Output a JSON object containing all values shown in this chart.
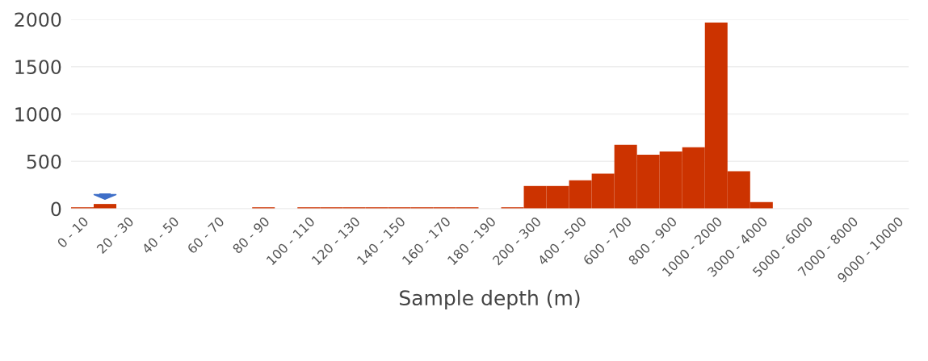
{
  "chart_data": {
    "type": "bar",
    "xlabel": "Sample depth (m)",
    "categories": [
      "0 - 10",
      null,
      "20 - 30",
      null,
      "40 - 50",
      null,
      "60 - 70",
      null,
      "80 - 90",
      null,
      "100 - 110",
      null,
      "120 - 130",
      null,
      "140 - 150",
      null,
      "160 - 170",
      null,
      "180 - 190",
      null,
      "200 - 300",
      null,
      "400 - 500",
      null,
      "600 - 700",
      null,
      "800 - 900",
      null,
      "1000 - 2000",
      null,
      "3000 - 4000",
      null,
      "5000 - 6000",
      null,
      "7000 - 8000",
      null,
      "9000 - 10000"
    ],
    "values": [
      15,
      50,
      0,
      0,
      0,
      0,
      0,
      0,
      15,
      0,
      15,
      15,
      15,
      15,
      15,
      15,
      15,
      15,
      0,
      15,
      240,
      240,
      300,
      370,
      675,
      570,
      605,
      650,
      1965,
      395,
      70,
      0,
      0,
      0,
      0,
      0,
      0
    ],
    "color": "#cc3300",
    "ylim": [
      0,
      2000
    ],
    "yticks": [
      0,
      500,
      1000,
      1500,
      2000
    ],
    "grid": "y"
  }
}
